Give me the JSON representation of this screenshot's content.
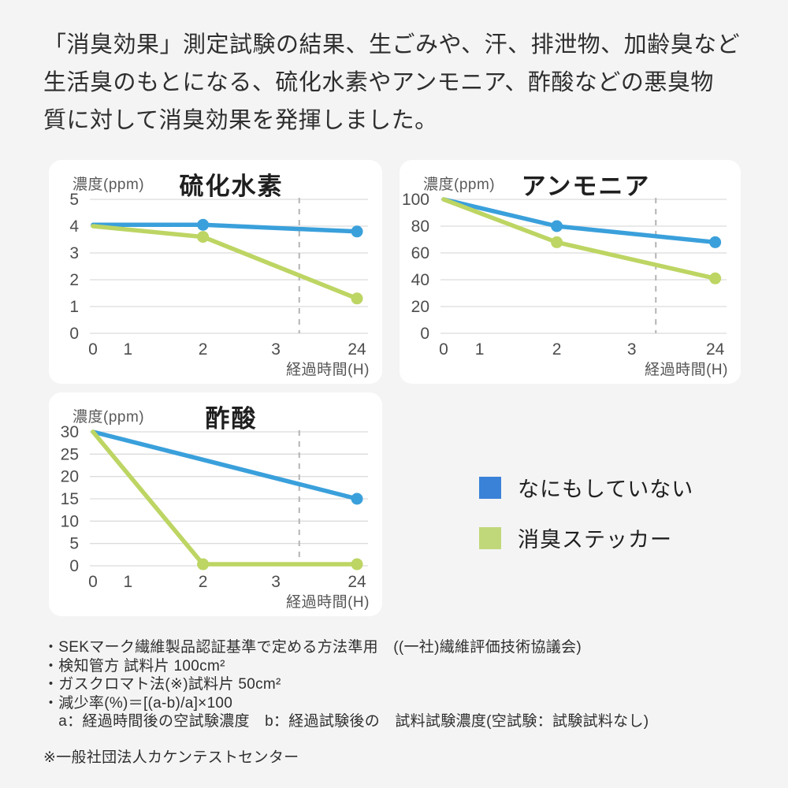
{
  "header": {
    "text": "「消臭効果」測定試験の結果、生ごみや、汗、排泄物、加齢臭など\n生活臭のもとになる、硫化水素やアンモニア、酢酸などの悪臭物\n質に対して消臭効果を発揮しました。"
  },
  "colors": {
    "untreated_line": "#3aa0db",
    "sticker_line": "#bdd563",
    "legend_untreated": "#3a82d8",
    "legend_sticker": "#c1d87a",
    "grid": "#dcdcdc",
    "dashed": "#b4b4b4",
    "tick_text": "#4d4d4d",
    "card_bg": "#ffffff",
    "page_bg": "#f4f4f5"
  },
  "legend": {
    "items": [
      {
        "label": "なにもしていない",
        "series_key": "untreated"
      },
      {
        "label": "消臭ステッカー",
        "series_key": "sticker"
      }
    ]
  },
  "chart_data": [
    {
      "type": "line",
      "title": "硫化水素",
      "ylabel": "濃度(ppm)",
      "xlabel": "経過時間(H)",
      "x_tick_labels": [
        "0",
        "1",
        "2",
        "3",
        "24"
      ],
      "x_positions_pct": [
        0,
        12.7,
        40,
        66.5,
        96
      ],
      "dashed_line_pct": 75,
      "y_ticks": [
        0,
        1,
        2,
        3,
        4,
        5
      ],
      "ylim": [
        0,
        5
      ],
      "grid": true,
      "series": [
        {
          "name": "なにもしていない",
          "color_key": "untreated",
          "points_tick_value": [
            [
              0,
              4.05
            ],
            [
              2,
              4.05
            ],
            [
              4,
              3.8
            ]
          ],
          "marker_ticks": [
            2,
            4
          ]
        },
        {
          "name": "消臭ステッカー",
          "color_key": "sticker",
          "points_tick_value": [
            [
              0,
              4.0
            ],
            [
              2,
              3.6
            ],
            [
              4,
              1.3
            ]
          ],
          "marker_ticks": [
            2,
            4
          ]
        }
      ]
    },
    {
      "type": "line",
      "title": "アンモニア",
      "ylabel": "濃度(ppm)",
      "xlabel": "経過時間(H)",
      "x_tick_labels": [
        "0",
        "1",
        "2",
        "3",
        "24"
      ],
      "x_positions_pct": [
        0,
        12.7,
        40,
        66.5,
        96
      ],
      "dashed_line_pct": 75,
      "y_ticks": [
        0,
        20,
        40,
        60,
        80,
        100
      ],
      "ylim": [
        0,
        100
      ],
      "grid": true,
      "series": [
        {
          "name": "なにもしていない",
          "color_key": "untreated",
          "points_tick_value": [
            [
              0,
              100
            ],
            [
              2,
              80
            ],
            [
              4,
              68
            ]
          ],
          "marker_ticks": [
            2,
            4
          ]
        },
        {
          "name": "消臭ステッカー",
          "color_key": "sticker",
          "points_tick_value": [
            [
              0,
              100
            ],
            [
              2,
              68
            ],
            [
              4,
              41
            ]
          ],
          "marker_ticks": [
            2,
            4
          ]
        }
      ]
    },
    {
      "type": "line",
      "title": "酢酸",
      "ylabel": "濃度(ppm)",
      "xlabel": "経過時間(H)",
      "x_tick_labels": [
        "0",
        "1",
        "2",
        "3",
        "24"
      ],
      "x_positions_pct": [
        0,
        12.7,
        40,
        66.5,
        96
      ],
      "dashed_line_pct": 75,
      "y_ticks": [
        0,
        5,
        10,
        15,
        20,
        25,
        30
      ],
      "ylim": [
        0,
        30
      ],
      "grid": true,
      "series": [
        {
          "name": "なにもしていない",
          "color_key": "untreated",
          "points_tick_value": [
            [
              0,
              30
            ],
            [
              4,
              15
            ]
          ],
          "marker_ticks": [
            4
          ]
        },
        {
          "name": "消臭ステッカー",
          "color_key": "sticker",
          "points_tick_value": [
            [
              0,
              30
            ],
            [
              2,
              0.35
            ],
            [
              4,
              0.35
            ]
          ],
          "marker_ticks": [
            2,
            4
          ]
        }
      ]
    }
  ],
  "notes": {
    "lines": [
      "・SEKマーク繊維製品認証基準で定める方法準用　((一社)繊維評価技術協議会)",
      "・検知管方 試料片 100cm²",
      "・ガスクロマト法(※)試料片 50cm²",
      "・減少率(%)＝[(a-b)/a]×100",
      "　a：経過時間後の空試験濃度　b：経過試験後の　試料試験濃度(空試験：試験試料なし)"
    ],
    "footer": "※一般社団法人カケンテストセンター"
  }
}
